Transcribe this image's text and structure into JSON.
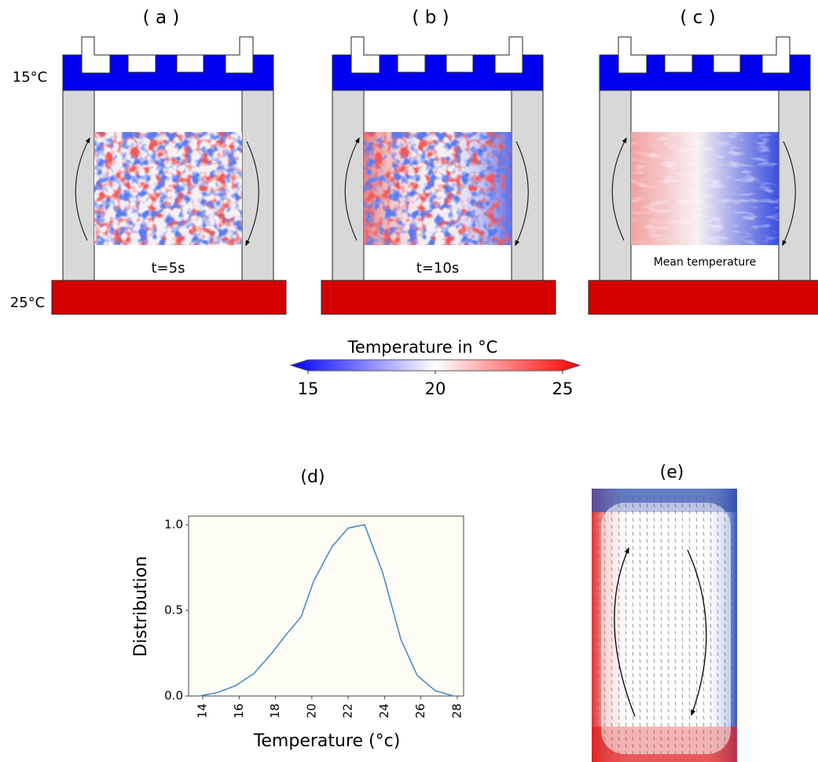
{
  "panels": [
    {
      "label": "( a )",
      "caption": "t=5s"
    },
    {
      "label": "( b )",
      "caption": "t=10s"
    },
    {
      "label": "( c )",
      "caption": "Mean temperature"
    }
  ],
  "top_temp": "15°C",
  "bottom_temp": "25°C",
  "colorbar": {
    "label": "Temperature in °C",
    "lim": [
      15,
      25
    ],
    "ticks": [
      15,
      20,
      25
    ]
  },
  "panel_e": {
    "label": "(e)"
  },
  "chart_data": {
    "type": "line",
    "title": "(d)",
    "xlabel": "Temperature  (°c)",
    "ylabel": "Distribution",
    "x": [
      13.8,
      14.8,
      15.8,
      16.8,
      17.8,
      18.6,
      19.4,
      20.1,
      21.1,
      22.0,
      22.9,
      23.9,
      24.9,
      25.8,
      26.8,
      27.8
    ],
    "series": [
      {
        "color": "#4a8cc4",
        "values": [
          0,
          0.02,
          0.06,
          0.13,
          0.25,
          0.36,
          0.46,
          0.67,
          0.87,
          0.98,
          1.0,
          0.72,
          0.33,
          0.12,
          0.03,
          0
        ]
      }
    ],
    "xlim": [
      13.22,
      28.35
    ],
    "xticks": [
      14,
      16,
      18,
      20,
      22,
      24,
      26,
      28
    ],
    "ylim": [
      0,
      1.05
    ],
    "yticks": [
      {
        "value": 0,
        "label": "0.0"
      },
      {
        "value": 0.5,
        "label": "0.5"
      },
      {
        "value": 1,
        "label": "1.0"
      }
    ]
  }
}
